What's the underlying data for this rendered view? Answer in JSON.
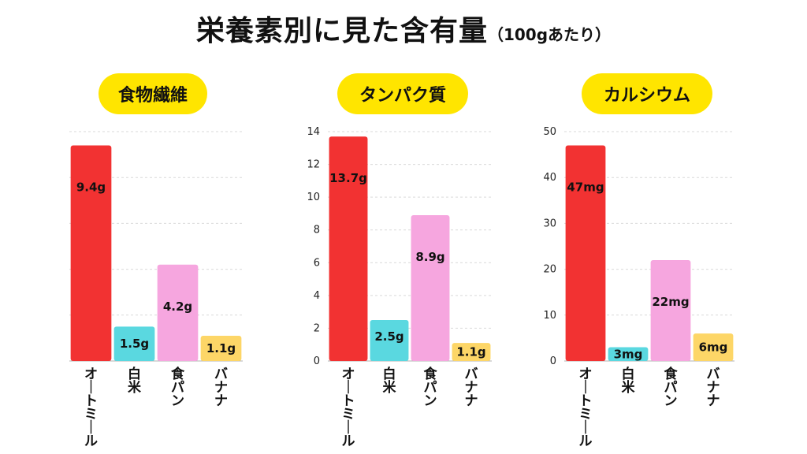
{
  "title": {
    "main": "栄養素別に見た含有量",
    "sub": "（100gあたり）"
  },
  "colors": {
    "pill": "#ffe500",
    "bars": [
      "#f23232",
      "#5ad8e0",
      "#f6a6df",
      "#fdd667"
    ]
  },
  "chart_data": [
    {
      "type": "bar",
      "title": "食物繊維",
      "categories": [
        "オートミール",
        "白米",
        "食パン",
        "バナナ"
      ],
      "values": [
        9.4,
        1.5,
        4.2,
        1.1
      ],
      "data_labels": [
        "9.4g",
        "1.5g",
        "4.2g",
        "1.1g"
      ],
      "ylim": [
        0,
        10
      ],
      "yticks": [],
      "grid": true
    },
    {
      "type": "bar",
      "title": "タンパク質",
      "categories": [
        "オートミール",
        "白米",
        "食パン",
        "バナナ"
      ],
      "values": [
        13.7,
        2.5,
        8.9,
        1.1
      ],
      "data_labels": [
        "13.7g",
        "2.5g",
        "8.9g",
        "1.1g"
      ],
      "ylim": [
        0,
        14
      ],
      "yticks": [
        "0",
        "2",
        "4",
        "6",
        "8",
        "10",
        "12",
        "14"
      ],
      "grid": true
    },
    {
      "type": "bar",
      "title": "カルシウム",
      "categories": [
        "オートミール",
        "白米",
        "食パン",
        "バナナ"
      ],
      "values": [
        47,
        3,
        22,
        6
      ],
      "data_labels": [
        "47mg",
        "3mg",
        "22mg",
        "6mg"
      ],
      "ylim": [
        0,
        50
      ],
      "yticks": [
        "0",
        "10",
        "20",
        "30",
        "40",
        "50"
      ],
      "grid": true
    }
  ]
}
